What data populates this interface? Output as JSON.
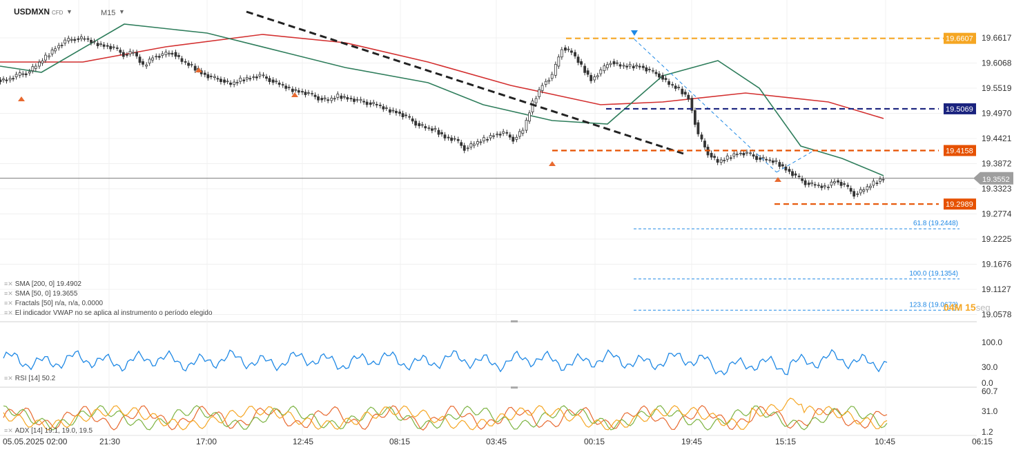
{
  "header": {
    "symbol": "USDMXN",
    "instrument_type": "CFD",
    "timeframe": "M15"
  },
  "legend": [
    {
      "id": "sma200",
      "text": "SMA [200, 0] 19.4902"
    },
    {
      "id": "sma50",
      "text": "SMA [50, 0] 19.3655"
    },
    {
      "id": "fractals",
      "text": "Fractals [50] n/a, n/a, 0.0000"
    },
    {
      "id": "vwap",
      "text": "El indicador VWAP no se aplica al instrumento o período elegido"
    }
  ],
  "rsi_legend": "RSI [14] 50.2",
  "adx_legend": "ADX [14] 19.1, 19.0, 19.5",
  "timer": {
    "main": "04M 15",
    "unit": "seg"
  },
  "colors": {
    "up": "#26a69a",
    "down": "#ef5350",
    "candle": "#333333",
    "sma50": "#2e7d5b",
    "sma200": "#d32f2f",
    "trendline": "#222222",
    "res_orange": "#f5a623",
    "res_navy": "#1a237e",
    "sup_red": "#e65100",
    "fib": "#1e88e5",
    "rsi": "#1e88e5",
    "adx": "#e8692f",
    "di_plus": "#7cb342",
    "di_minus": "#f5a623",
    "last_price": "#757575"
  },
  "chart_data": {
    "type": "candlestick",
    "title": "USDMXN M15",
    "y_ticks": [
      "19.6617",
      "19.6068",
      "19.5519",
      "19.4970",
      "19.4421",
      "19.3872",
      "19.3323",
      "19.2774",
      "19.2225",
      "19.1676",
      "19.1127",
      "19.0578"
    ],
    "x_ticks": [
      "05.05.2025 02:00",
      "21:30",
      "17:00",
      "12:45",
      "08:15",
      "03:45",
      "00:15",
      "19:45",
      "15:15",
      "10:45",
      "06:15"
    ],
    "ylim": [
      19.0578,
      19.6617
    ],
    "last_price": 19.3552,
    "horizontal_levels": [
      {
        "price": 19.6607,
        "label": "19.6607",
        "style": "dashed",
        "color": "#f5a623"
      },
      {
        "price": 19.5069,
        "label": "19.5069",
        "style": "dashed",
        "color": "#1a237e"
      },
      {
        "price": 19.4158,
        "label": "19.4158",
        "style": "dashed",
        "color": "#e65100"
      },
      {
        "price": 19.2989,
        "label": "19.2989",
        "style": "dashed",
        "color": "#e65100"
      }
    ],
    "fibonacci_levels": [
      {
        "ratio": "61.8",
        "price": 19.2448,
        "label": "61.8 (19.2448)"
      },
      {
        "ratio": "100.0",
        "price": 19.1354,
        "label": "100.0 (19.1354)"
      },
      {
        "ratio": "123.8",
        "price": 19.0672,
        "label": "123.8 (19.0672)"
      }
    ],
    "sma200_last": 19.4902,
    "sma50_last": 19.3655,
    "close_series": [
      19.57,
      19.58,
      19.585,
      19.6,
      19.62,
      19.64,
      19.655,
      19.66,
      19.66,
      19.65,
      19.645,
      19.64,
      19.625,
      19.63,
      19.6,
      19.62,
      19.625,
      19.63,
      19.61,
      19.6,
      19.585,
      19.575,
      19.57,
      19.56,
      19.57,
      19.575,
      19.58,
      19.57,
      19.56,
      19.55,
      19.545,
      19.54,
      19.53,
      19.525,
      19.535,
      19.53,
      19.525,
      19.52,
      19.515,
      19.505,
      19.5,
      19.49,
      19.475,
      19.465,
      19.46,
      19.445,
      19.44,
      19.42,
      19.43,
      19.44,
      19.45,
      19.455,
      19.44,
      19.46,
      19.52,
      19.56,
      19.58,
      19.64,
      19.63,
      19.6,
      19.57,
      19.59,
      19.61,
      19.6,
      19.6,
      19.6,
      19.59,
      19.58,
      19.56,
      19.55,
      19.53,
      19.45,
      19.41,
      19.39,
      19.4,
      19.41,
      19.41,
      19.4,
      19.395,
      19.39,
      19.375,
      19.36,
      19.345,
      19.34,
      19.335,
      19.35,
      19.34,
      19.32,
      19.33,
      19.345,
      19.355
    ],
    "rsi": {
      "ylim": [
        0,
        100
      ],
      "ticks": [
        "100.0",
        "30.0",
        "0.0"
      ],
      "last": 50.2
    },
    "adx": {
      "ylim": [
        1.2,
        60.7
      ],
      "ticks": [
        "60.7",
        "31.0",
        "1.2"
      ],
      "adx": 19.1,
      "di_plus": 19.0,
      "di_minus": 19.5
    }
  }
}
